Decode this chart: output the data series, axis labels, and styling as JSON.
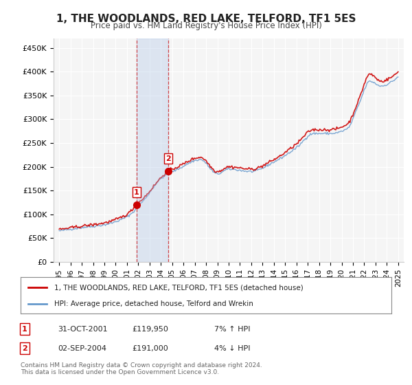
{
  "title": "1, THE WOODLANDS, RED LAKE, TELFORD, TF1 5ES",
  "subtitle": "Price paid vs. HM Land Registry's House Price Index (HPI)",
  "ylabel_ticks": [
    "£0",
    "£50K",
    "£100K",
    "£150K",
    "£200K",
    "£250K",
    "£300K",
    "£350K",
    "£400K",
    "£450K"
  ],
  "ytick_vals": [
    0,
    50000,
    100000,
    150000,
    200000,
    250000,
    300000,
    350000,
    400000,
    450000
  ],
  "ylim": [
    0,
    470000
  ],
  "xlim_start": 1994.5,
  "xlim_end": 2025.5,
  "background_color": "#ffffff",
  "plot_bg_color": "#f5f5f5",
  "grid_color": "#ffffff",
  "sale1_x": 2001.833,
  "sale1_y": 119950,
  "sale2_x": 2004.667,
  "sale2_y": 191000,
  "sale1_label": "1",
  "sale2_label": "2",
  "vline1_x": 2001.833,
  "vline2_x": 2004.667,
  "vshade_color": "#aec6e8",
  "vshade_alpha": 0.35,
  "legend_line1_color": "#cc0000",
  "legend_line1_label": "1, THE WOODLANDS, RED LAKE, TELFORD, TF1 5ES (detached house)",
  "legend_line2_color": "#6699cc",
  "legend_line2_label": "HPI: Average price, detached house, Telford and Wrekin",
  "table_rows": [
    {
      "num": "1",
      "date": "31-OCT-2001",
      "price": "£119,950",
      "hpi": "7% ↑ HPI"
    },
    {
      "num": "2",
      "date": "02-SEP-2004",
      "price": "£191,000",
      "hpi": "4% ↓ HPI"
    }
  ],
  "footnote": "Contains HM Land Registry data © Crown copyright and database right 2024.\nThis data is licensed under the Open Government Licence v3.0.",
  "hpi_line_color": "#6699cc",
  "price_line_color": "#cc0000",
  "xtick_years": [
    1995,
    1996,
    1997,
    1998,
    1999,
    2000,
    2001,
    2002,
    2003,
    2004,
    2005,
    2006,
    2007,
    2008,
    2009,
    2010,
    2011,
    2012,
    2013,
    2014,
    2015,
    2016,
    2017,
    2018,
    2019,
    2020,
    2021,
    2022,
    2023,
    2024,
    2025
  ]
}
